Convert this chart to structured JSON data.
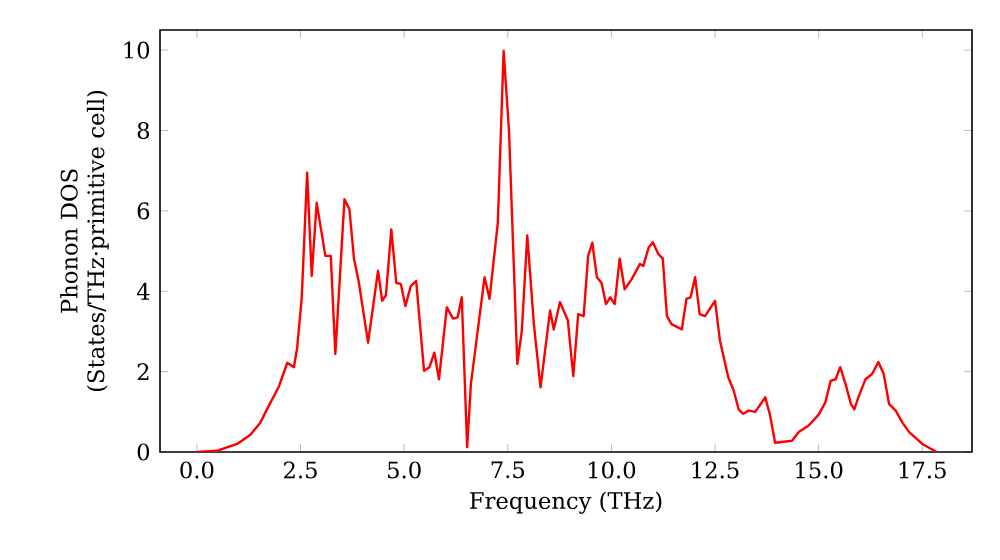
{
  "chart_data": {
    "type": "line",
    "xlabel": "Frequency (THz)",
    "ylabel": "Phonon DOS (States/THz·primitive cell)",
    "x": [
      0,
      0.48,
      0.97,
      1.29,
      1.53,
      1.69,
      1.97,
      2.18,
      2.34,
      2.42,
      2.53,
      2.66,
      2.77,
      2.89,
      3.1,
      3.23,
      3.34,
      3.56,
      3.68,
      3.79,
      3.9,
      4.13,
      4.37,
      4.47,
      4.56,
      4.69,
      4.81,
      4.92,
      5.03,
      5.16,
      5.29,
      5.48,
      5.61,
      5.73,
      5.84,
      6.03,
      6.18,
      6.29,
      6.39,
      6.52,
      6.61,
      6.94,
      7.06,
      7.26,
      7.4,
      7.53,
      7.73,
      7.84,
      7.97,
      8.13,
      8.29,
      8.52,
      8.61,
      8.76,
      8.95,
      9.08,
      9.2,
      9.33,
      9.44,
      9.54,
      9.65,
      9.76,
      9.87,
      9.97,
      10.08,
      10.2,
      10.32,
      10.49,
      10.69,
      10.77,
      10.9,
      11.0,
      11.13,
      11.24,
      11.34,
      11.45,
      11.7,
      11.81,
      11.91,
      12.02,
      12.13,
      12.26,
      12.5,
      12.62,
      12.82,
      12.95,
      13.07,
      13.18,
      13.31,
      13.47,
      13.71,
      13.82,
      13.95,
      14.36,
      14.52,
      14.76,
      15.0,
      15.16,
      15.29,
      15.41,
      15.52,
      15.65,
      15.78,
      15.86,
      15.97,
      16.13,
      16.29,
      16.44,
      16.57,
      16.7,
      16.86,
      17.02,
      17.18,
      17.5,
      17.85
    ],
    "series": [
      {
        "color": "#ff0000",
        "values": [
          0,
          0.03,
          0.2,
          0.43,
          0.73,
          1.06,
          1.61,
          2.22,
          2.11,
          2.6,
          3.85,
          6.95,
          4.38,
          6.2,
          4.88,
          4.88,
          2.44,
          6.29,
          6.04,
          4.81,
          4.26,
          2.72,
          4.51,
          3.76,
          3.9,
          5.54,
          4.21,
          4.18,
          3.63,
          4.13,
          4.26,
          2.02,
          2.11,
          2.47,
          1.81,
          3.6,
          3.32,
          3.35,
          3.85,
          0.12,
          1.69,
          4.35,
          3.81,
          5.7,
          9.98,
          7.99,
          2.19,
          3.02,
          5.39,
          3.18,
          1.61,
          3.52,
          3.05,
          3.73,
          3.27,
          1.89,
          3.43,
          3.38,
          4.88,
          5.21,
          4.35,
          4.21,
          3.68,
          3.85,
          3.68,
          4.81,
          4.05,
          4.3,
          4.68,
          4.63,
          5.09,
          5.22,
          4.93,
          4.81,
          3.38,
          3.18,
          3.05,
          3.81,
          3.85,
          4.35,
          3.43,
          3.38,
          3.76,
          2.77,
          1.86,
          1.53,
          1.06,
          0.95,
          1.03,
          1.0,
          1.36,
          0.95,
          0.23,
          0.28,
          0.5,
          0.66,
          0.93,
          1.23,
          1.77,
          1.81,
          2.11,
          1.69,
          1.19,
          1.06,
          1.39,
          1.81,
          1.94,
          2.24,
          1.94,
          1.19,
          1.03,
          0.73,
          0.5,
          0.2,
          0
        ]
      }
    ],
    "xlim": [
      -0.89,
      18.7
    ],
    "ylim": [
      0,
      10.5
    ],
    "xticks": [
      {
        "value": 0,
        "label": "0.0"
      },
      2.5,
      {
        "value": 5,
        "label": "5.0"
      },
      7.5,
      {
        "value": 10,
        "label": "10.0"
      },
      12.5,
      {
        "value": 15,
        "label": "15.0"
      },
      17.5
    ],
    "yticks": [
      0,
      2,
      4,
      6,
      8,
      10
    ],
    "line_style": "solid"
  }
}
